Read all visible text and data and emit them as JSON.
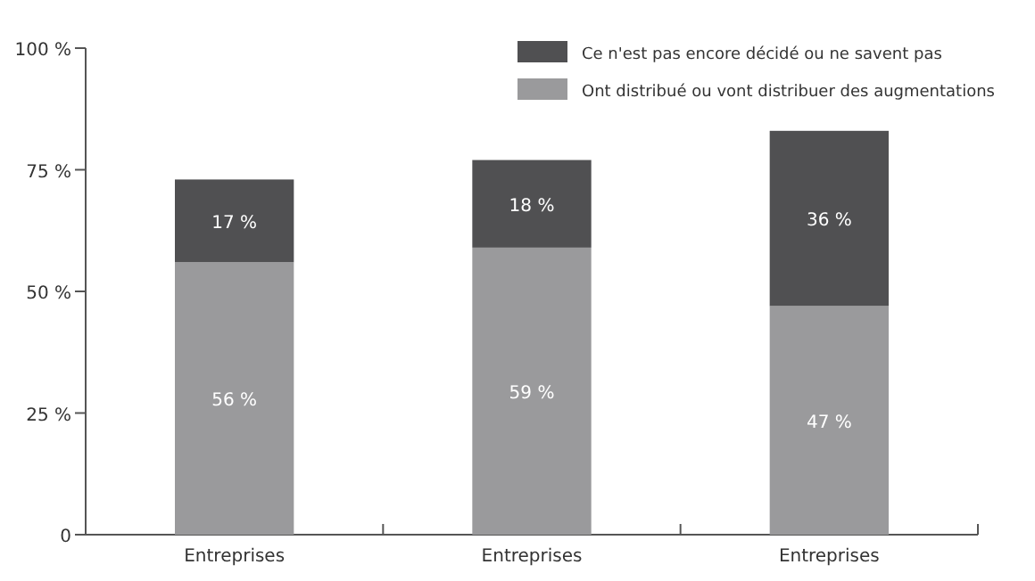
{
  "chart_data": {
    "type": "bar",
    "stacked": true,
    "categories": [
      "Entreprises",
      "Entreprises",
      "Entreprises"
    ],
    "series": [
      {
        "name": "Ont distribué ou vont distribuer des augmentations",
        "color": "#9a9a9c",
        "values": [
          56,
          59,
          47
        ],
        "value_labels": [
          "56 %",
          "59 %",
          "47 %"
        ]
      },
      {
        "name": "Ce n'est pas encore décidé ou ne savent pas",
        "color": "#505052",
        "values": [
          17,
          18,
          36
        ],
        "value_labels": [
          "17 %",
          "18 %",
          "36 %"
        ]
      }
    ],
    "ylim": [
      0,
      100
    ],
    "yticks": [
      0,
      {
        "value": 25,
        "label": "25 %"
      },
      {
        "value": 50,
        "label": "50 %"
      },
      {
        "value": 75,
        "label": "75 %"
      },
      {
        "value": 100,
        "label": "100 %"
      }
    ],
    "legend": "top right",
    "grid": false
  }
}
